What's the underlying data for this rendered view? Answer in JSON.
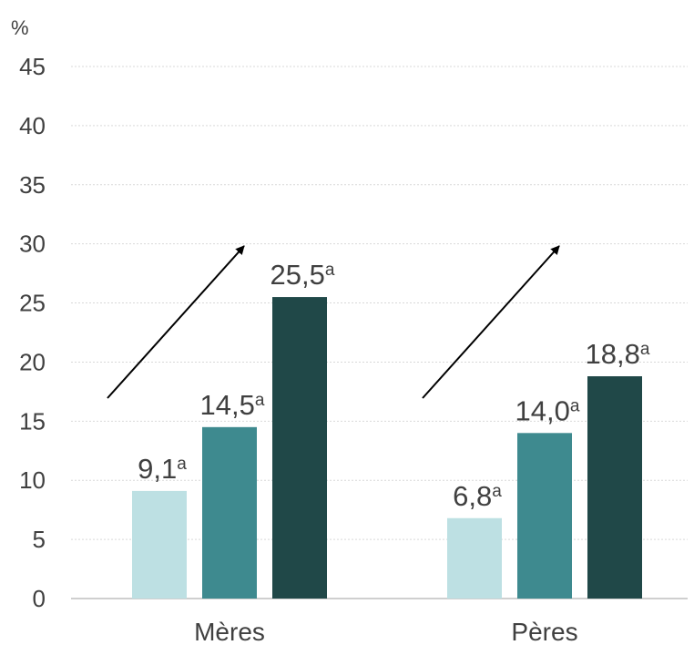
{
  "chart_data": {
    "type": "bar",
    "ylabel": "%",
    "ylim": [
      0,
      45
    ],
    "yticks": [
      0,
      5,
      10,
      15,
      20,
      25,
      30,
      35,
      40,
      45
    ],
    "grid": true,
    "categories": [
      "Mères",
      "Pères"
    ],
    "series": [
      {
        "color": "#bde0e3",
        "values": [
          9.1,
          6.8
        ],
        "labels": [
          "9,1",
          "6,8"
        ]
      },
      {
        "color": "#3e8a8f",
        "values": [
          14.5,
          14.0
        ],
        "labels": [
          "14,5",
          "14,0"
        ]
      },
      {
        "color": "#204848",
        "values": [
          25.5,
          18.8
        ],
        "labels": [
          "25,5",
          "18,8"
        ]
      }
    ],
    "label_superscript": "a",
    "annotations": [
      {
        "type": "arrow",
        "category": "Mères",
        "direction": "increasing"
      },
      {
        "type": "arrow",
        "category": "Pères",
        "direction": "increasing"
      }
    ]
  }
}
